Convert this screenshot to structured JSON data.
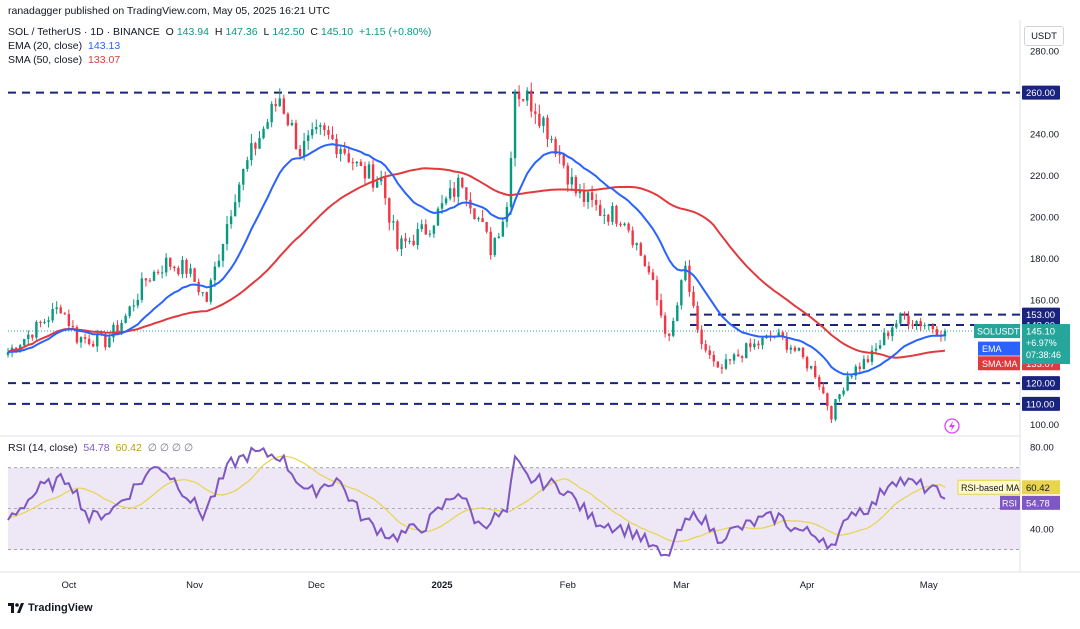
{
  "header": {
    "published": "ranadagger published on TradingView.com, May 05, 2025 16:21 UTC",
    "symbol": "SOL / TetherUS · 1D · BINANCE",
    "ohlc": [
      {
        "label": "O",
        "value": "143.94"
      },
      {
        "label": "H",
        "value": "147.36"
      },
      {
        "label": "L",
        "value": "142.50"
      },
      {
        "label": "C",
        "value": "145.10"
      }
    ],
    "change": "+1.15 (+0.80%)",
    "ema": {
      "label": "EMA (20, close)",
      "value": "143.13"
    },
    "sma": {
      "label": "SMA (50, close)",
      "value": "133.07"
    },
    "rsi": {
      "label": "RSI (14, close)",
      "value": "54.78",
      "ma_value": "60.42",
      "extra": "∅ ∅ ∅ ∅"
    }
  },
  "currency_button": "USDT",
  "footer": {
    "brand": "TradingView"
  },
  "colors": {
    "up": "#089981",
    "down": "#f23645",
    "ema": "#2962ff",
    "sma": "#e03a3e",
    "rsi": "#7e57c2",
    "rsi_ma": "#e8d44d",
    "level": "#1a237e",
    "price_tag": "#26a69a",
    "band": "#ede7f6"
  },
  "chart_data": [
    {
      "type": "candlestick",
      "title": "SOL / TetherUS · 1D · BINANCE",
      "x_ticks": [
        "Oct",
        "Nov",
        "Dec",
        "2025",
        "Feb",
        "Mar",
        "Apr",
        "May"
      ],
      "y_ticks": [
        "100.00",
        "120.00",
        "140.00",
        "160.00",
        "180.00",
        "200.00",
        "220.00",
        "240.00",
        "260.00",
        "280.00"
      ],
      "ylim": [
        95,
        295
      ],
      "horizontal_levels": [
        "260.00",
        "153.00",
        "148.00",
        "120.00",
        "110.00"
      ],
      "price_labels": {
        "last": "145.10",
        "symbol_tag": "SOLUSDT",
        "change_pct": "+6.97%",
        "countdown": "07:38:46",
        "ema_tag": "EMA",
        "ema_value": "143.13",
        "sma_tag": "SMA:MA",
        "sma_value": "133.07"
      },
      "anchors": [
        [
          "2024-09-16",
          135
        ],
        [
          "2024-09-22",
          145
        ],
        [
          "2024-09-29",
          157
        ],
        [
          "2024-10-03",
          142
        ],
        [
          "2024-10-10",
          140
        ],
        [
          "2024-10-15",
          152
        ],
        [
          "2024-10-20",
          170
        ],
        [
          "2024-10-25",
          178
        ],
        [
          "2024-10-30",
          175
        ],
        [
          "2024-11-04",
          160
        ],
        [
          "2024-11-11",
          212
        ],
        [
          "2024-11-16",
          235
        ],
        [
          "2024-11-22",
          258
        ],
        [
          "2024-11-27",
          232
        ],
        [
          "2024-12-02",
          240
        ],
        [
          "2024-12-07",
          235
        ],
        [
          "2024-12-12",
          222
        ],
        [
          "2024-12-17",
          218
        ],
        [
          "2024-12-21",
          185
        ],
        [
          "2024-12-28",
          194
        ],
        [
          "2025-01-06",
          218
        ],
        [
          "2025-01-13",
          185
        ],
        [
          "2025-01-17",
          205
        ],
        [
          "2025-01-19",
          262
        ],
        [
          "2025-01-24",
          254
        ],
        [
          "2025-01-29",
          235
        ],
        [
          "2025-02-03",
          212
        ],
        [
          "2025-02-09",
          203
        ],
        [
          "2025-02-15",
          200
        ],
        [
          "2025-02-21",
          173
        ],
        [
          "2025-02-26",
          140
        ],
        [
          "2025-03-02",
          175
        ],
        [
          "2025-03-05",
          143
        ],
        [
          "2025-03-10",
          125
        ],
        [
          "2025-03-16",
          135
        ],
        [
          "2025-03-24",
          143
        ],
        [
          "2025-03-28",
          138
        ],
        [
          "2025-04-03",
          125
        ],
        [
          "2025-04-07",
          105
        ],
        [
          "2025-04-11",
          124
        ],
        [
          "2025-04-17",
          133
        ],
        [
          "2025-04-22",
          148
        ],
        [
          "2025-04-25",
          152
        ],
        [
          "2025-05-01",
          148
        ],
        [
          "2025-05-05",
          145.1
        ]
      ]
    },
    {
      "type": "line",
      "title": "RSI (14, close)",
      "y_ticks": [
        "40.00",
        "80.00"
      ],
      "ylim": [
        20,
        85
      ],
      "band": [
        30,
        70
      ],
      "series": [
        {
          "name": "RSI",
          "value": "54.78"
        },
        {
          "name": "RSI-based MA",
          "value": "60.42"
        }
      ],
      "anchors": [
        [
          "2024-09-16",
          45
        ],
        [
          "2024-09-24",
          60
        ],
        [
          "2024-10-01",
          65
        ],
        [
          "2024-10-06",
          45
        ],
        [
          "2024-10-12",
          50
        ],
        [
          "2024-10-18",
          62
        ],
        [
          "2024-10-23",
          72
        ],
        [
          "2024-10-28",
          62
        ],
        [
          "2024-11-03",
          47
        ],
        [
          "2024-11-10",
          72
        ],
        [
          "2024-11-15",
          77
        ],
        [
          "2024-11-22",
          76
        ],
        [
          "2024-11-29",
          57
        ],
        [
          "2024-12-06",
          65
        ],
        [
          "2024-12-13",
          44
        ],
        [
          "2024-12-20",
          36
        ],
        [
          "2024-12-28",
          42
        ],
        [
          "2025-01-05",
          59
        ],
        [
          "2025-01-10",
          42
        ],
        [
          "2025-01-17",
          48
        ],
        [
          "2025-01-19",
          73
        ],
        [
          "2025-01-22",
          65
        ],
        [
          "2025-01-31",
          60
        ],
        [
          "2025-02-07",
          45
        ],
        [
          "2025-02-18",
          38
        ],
        [
          "2025-02-25",
          25
        ],
        [
          "2025-03-01",
          40
        ],
        [
          "2025-03-05",
          48
        ],
        [
          "2025-03-10",
          36
        ],
        [
          "2025-03-20",
          44
        ],
        [
          "2025-03-25",
          46
        ],
        [
          "2025-03-29",
          40
        ],
        [
          "2025-04-05",
          36
        ],
        [
          "2025-04-08",
          30
        ],
        [
          "2025-04-11",
          48
        ],
        [
          "2025-04-17",
          51
        ],
        [
          "2025-04-22",
          65
        ],
        [
          "2025-04-27",
          62
        ],
        [
          "2025-05-01",
          60
        ],
        [
          "2025-05-05",
          54.78
        ]
      ]
    }
  ]
}
